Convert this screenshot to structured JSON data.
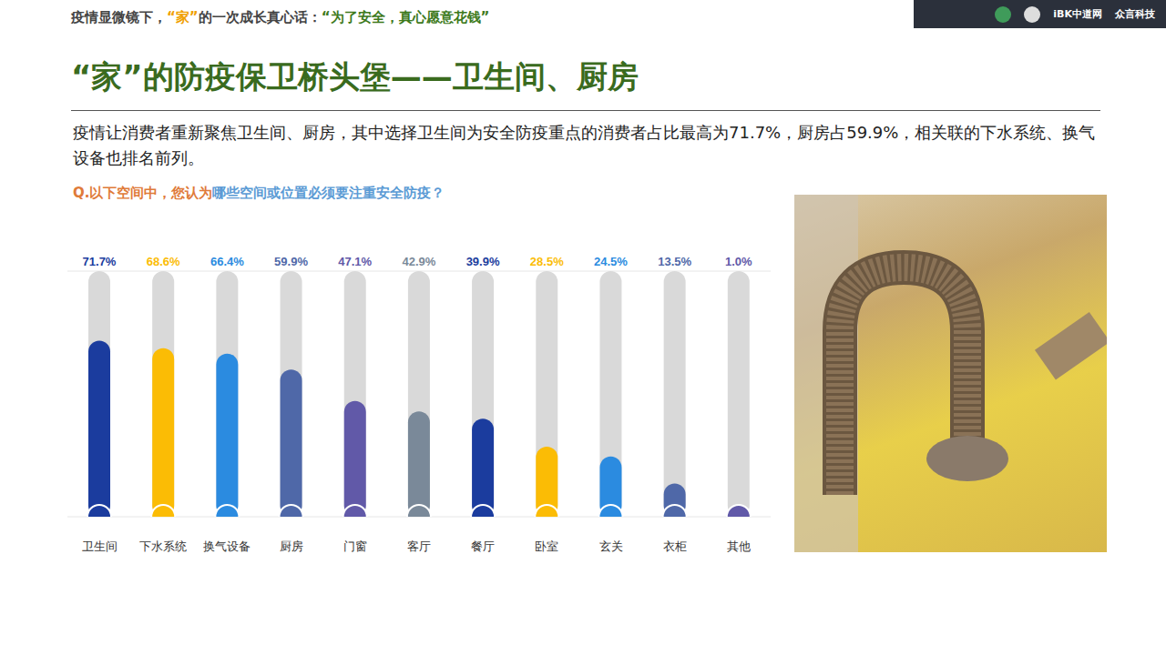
{
  "header": {
    "segments": [
      "疫情显微镜下，",
      "“家”",
      "的一次成长真心话：",
      "“为了安全，真心愿意花钱”"
    ],
    "logos": [
      "iBK中道网",
      "众言科技"
    ]
  },
  "title": "“家”的防疫保卫桥头堡——卫生间、厨房",
  "description": "疫情让消费者重新聚焦卫生间、厨房，其中选择卫生间为安全防疫重点的消费者占比最高为71.7%，厨房占59.9%，相关联的下水系统、换气设备也排名前列。",
  "question": {
    "prefix": "Q.以下空间中，您认为",
    "highlight": "哪些空间或位置必须要注重安全防疫？"
  },
  "chart_data": {
    "type": "bar",
    "categories": [
      "卫生间",
      "下水系统",
      "换气设备",
      "厨房",
      "门窗",
      "客厅",
      "餐厅",
      "卧室",
      "玄关",
      "衣柜",
      "其他"
    ],
    "values": [
      71.7,
      68.6,
      66.4,
      59.9,
      47.1,
      42.9,
      39.9,
      28.5,
      24.5,
      13.5,
      1.0
    ],
    "value_labels": [
      "71.7%",
      "68.6%",
      "66.4%",
      "59.9%",
      "47.1%",
      "42.9%",
      "39.9%",
      "28.5%",
      "24.5%",
      "13.5%",
      "1.0%"
    ],
    "colors": [
      "#1b3c9e",
      "#fbbc05",
      "#2b8be0",
      "#4f68a8",
      "#6159a8",
      "#7a8999",
      "#1b3c9e",
      "#fbbc05",
      "#2b8be0",
      "#4f68a8",
      "#6159a8"
    ],
    "ylim": [
      0,
      100
    ],
    "yticks": [
      0,
      20,
      40,
      60,
      80,
      100
    ],
    "grid": true,
    "data_labels": true,
    "tick_labels": "x"
  }
}
